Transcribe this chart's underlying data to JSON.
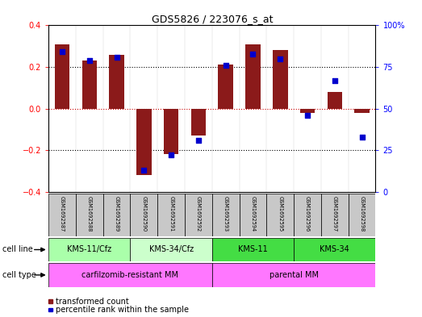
{
  "title": "GDS5826 / 223076_s_at",
  "samples": [
    "GSM1692587",
    "GSM1692588",
    "GSM1692589",
    "GSM1692590",
    "GSM1692591",
    "GSM1692592",
    "GSM1692593",
    "GSM1692594",
    "GSM1692595",
    "GSM1692596",
    "GSM1692597",
    "GSM1692598"
  ],
  "transformed_count": [
    0.31,
    0.23,
    0.26,
    -0.32,
    -0.22,
    -0.13,
    0.21,
    0.31,
    0.28,
    -0.02,
    0.08,
    -0.02
  ],
  "percentile_rank": [
    84,
    79,
    81,
    13,
    22,
    31,
    76,
    83,
    80,
    46,
    67,
    33
  ],
  "ylim": [
    -0.4,
    0.4
  ],
  "yticks_left": [
    -0.4,
    -0.2,
    0.0,
    0.2,
    0.4
  ],
  "yticks_right": [
    0,
    25,
    50,
    75,
    100
  ],
  "bar_color": "#8B1A1A",
  "dot_color": "#0000CD",
  "grid_color": "#000000",
  "zero_line_color": "#CC0000",
  "cell_lines": [
    {
      "label": "KMS-11/Cfz",
      "start": 0,
      "end": 3,
      "color": "#AAFFAA"
    },
    {
      "label": "KMS-34/Cfz",
      "start": 3,
      "end": 6,
      "color": "#CCFFCC"
    },
    {
      "label": "KMS-11",
      "start": 6,
      "end": 9,
      "color": "#44DD44"
    },
    {
      "label": "KMS-34",
      "start": 9,
      "end": 12,
      "color": "#44DD44"
    }
  ],
  "cell_types": [
    {
      "label": "carfilzomib-resistant MM",
      "start": 0,
      "end": 6,
      "color": "#FF77FF"
    },
    {
      "label": "parental MM",
      "start": 6,
      "end": 12,
      "color": "#FF77FF"
    }
  ],
  "legend_items": [
    {
      "label": "transformed count",
      "color": "#8B1A1A"
    },
    {
      "label": "percentile rank within the sample",
      "color": "#0000CD"
    }
  ],
  "bg_color": "#FFFFFF",
  "sample_box_color": "#C8C8C8"
}
